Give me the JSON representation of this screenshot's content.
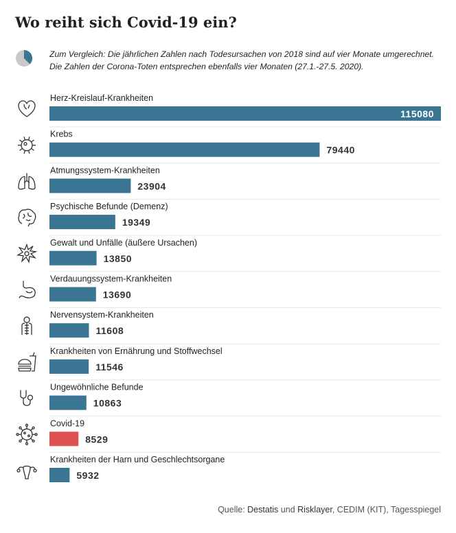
{
  "title": "Wo reiht sich Covid-19 ein?",
  "note": "Zum Vergleich: Die jährlichen Zahlen nach Todesursachen von 2018 sind auf vier Monate umgerechnet. Die Zahlen der Corona-Toten entsprechen ebenfalls vier Monaten (27.1.-27.5. 2020).",
  "source": {
    "prefix": "Quelle: ",
    "part1": "Destatis",
    "mid": " und ",
    "part2": "Risklayer",
    "rest": ", CEDIM (KIT), Tagesspiegel"
  },
  "colors": {
    "bar": "#3a7594",
    "highlight": "#e05252",
    "separator": "#e6e6e6"
  },
  "chart_data": {
    "type": "bar",
    "orientation": "horizontal",
    "title": "Wo reiht sich Covid-19 ein?",
    "categories": [
      "Herz-Kreislauf-Krankheiten",
      "Krebs",
      "Atmungssystem-Krankheiten",
      "Psychische Befunde (Demenz)",
      "Gewalt und Unfälle (äußere Ursachen)",
      "Verdauungssystem-Krankheiten",
      "Nervensystem-Krankheiten",
      "Krankheiten von Ernährung und Stoffwechsel",
      "Ungewöhnliche Befunde",
      "Covid-19",
      "Krankheiten der Harn und Geschlechtsorgane"
    ],
    "values": [
      115080,
      79440,
      23904,
      19349,
      13850,
      13690,
      11608,
      11546,
      10863,
      8529,
      5932
    ],
    "value_labels": [
      "115080",
      "79440",
      "23904",
      "19349",
      "13850",
      "13690",
      "11608",
      "11546",
      "10863",
      "8529",
      "5932"
    ],
    "icons": [
      "heart-icon",
      "cancer-cell-icon",
      "lungs-icon",
      "brain-icon",
      "explosion-icon",
      "stomach-icon",
      "nervous-system-icon",
      "fast-food-icon",
      "stethoscope-icon",
      "virus-icon",
      "uterus-icon"
    ],
    "highlight_category": "Covid-19",
    "xlim": [
      0,
      115080
    ],
    "grid": false,
    "legend": "none"
  }
}
